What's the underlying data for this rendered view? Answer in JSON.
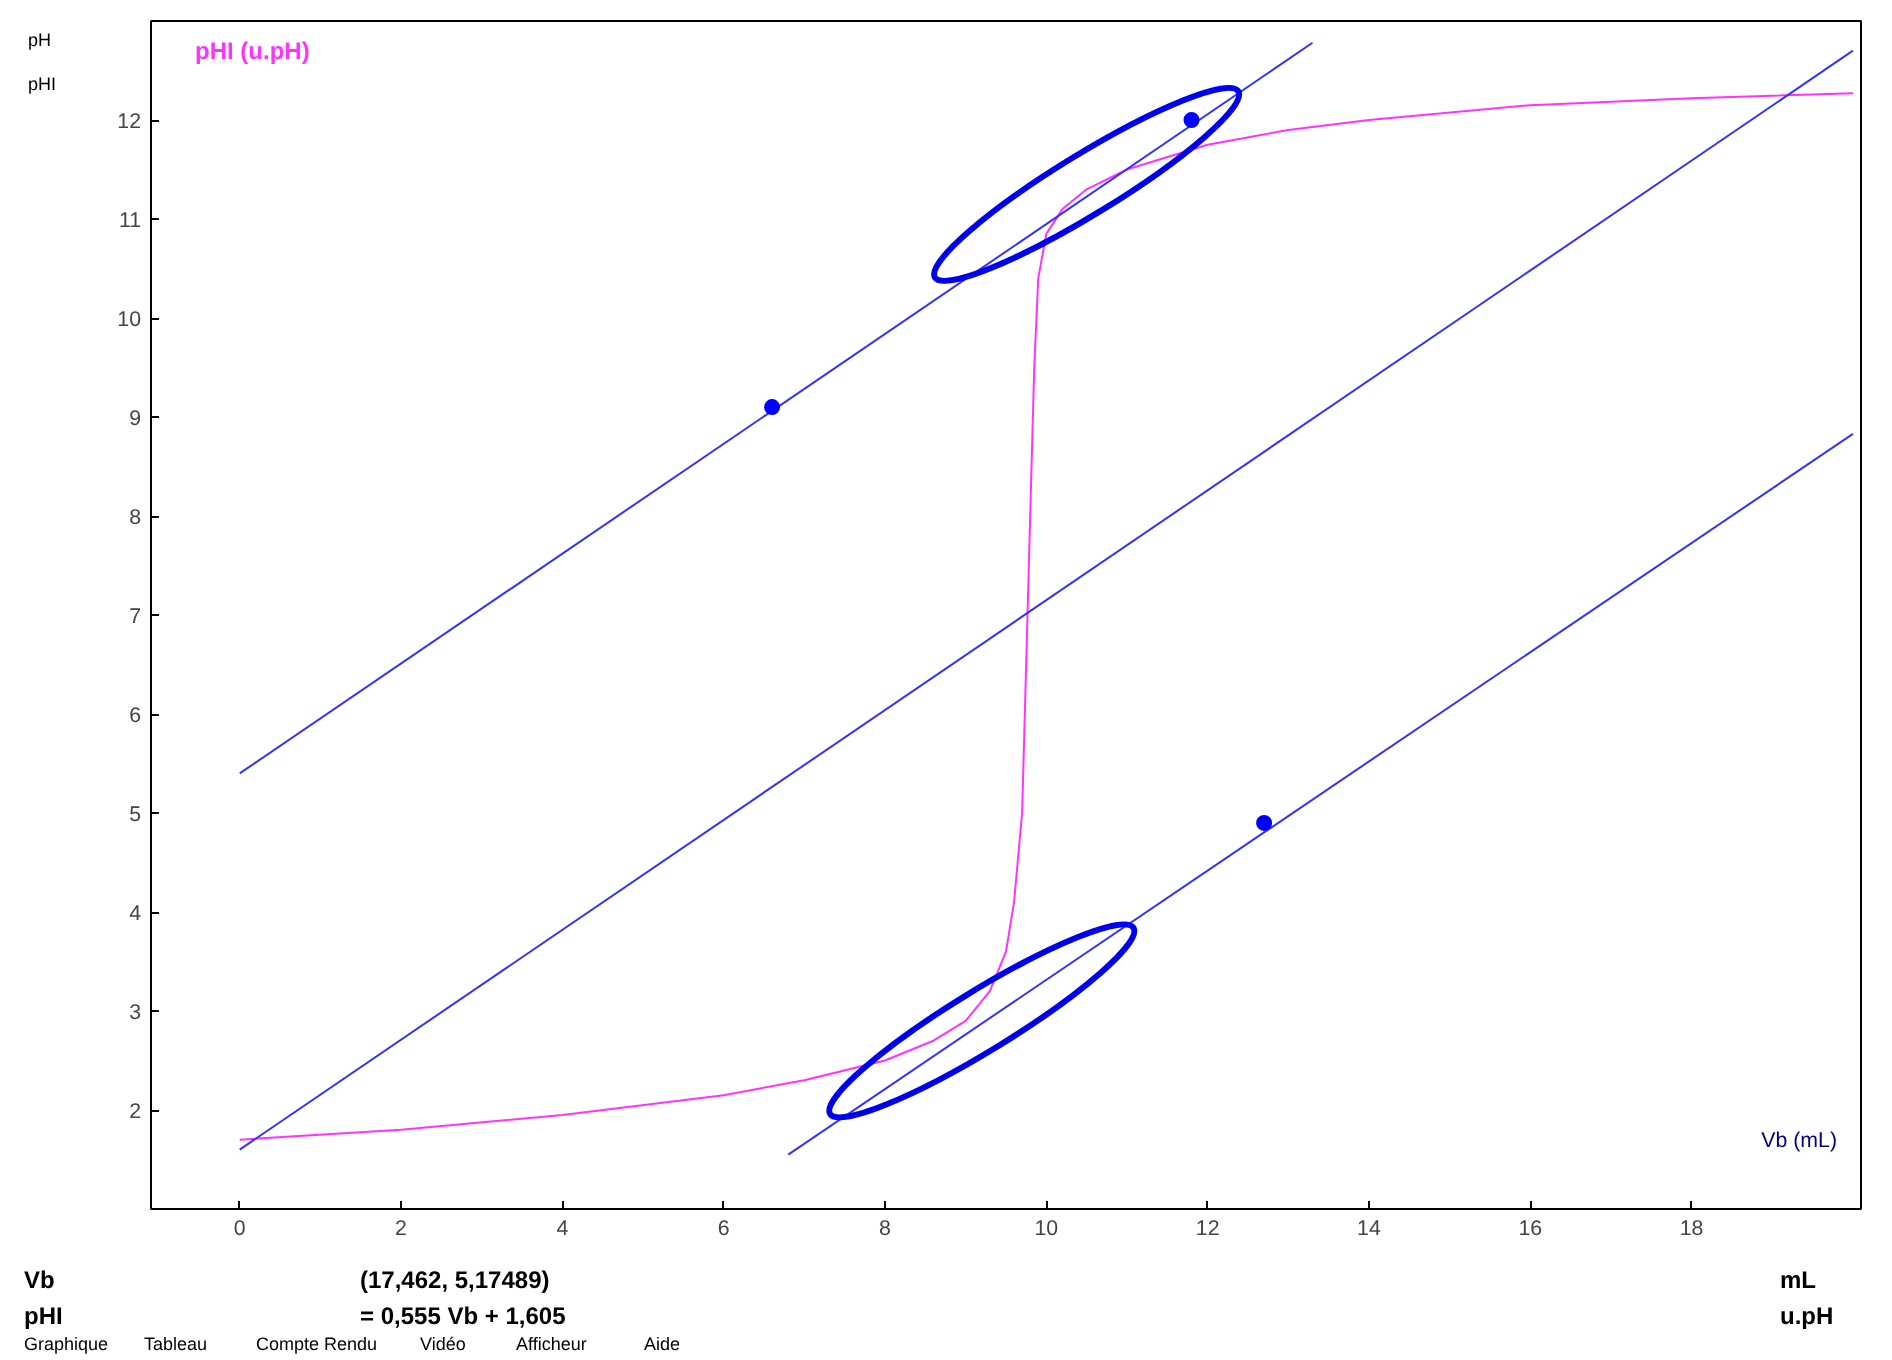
{
  "chart_data": {
    "type": "line",
    "xlabel": "Vb (mL)",
    "ylabel": "pHI (u.pH)",
    "xlim": [
      -1.1,
      20.1
    ],
    "ylim": [
      1,
      13
    ],
    "xticks": [
      0,
      2,
      4,
      6,
      8,
      10,
      12,
      14,
      16,
      18
    ],
    "yticks": [
      2,
      3,
      4,
      5,
      6,
      7,
      8,
      9,
      10,
      11,
      12
    ],
    "grid": false,
    "marker": "none",
    "line_style": "solid",
    "series": [
      {
        "color": "#ff33ff",
        "x": [
          0,
          2,
          4,
          6,
          7,
          8,
          8.6,
          9,
          9.3,
          9.5,
          9.6,
          9.7,
          9.75,
          9.8,
          9.85,
          9.9,
          10,
          10.2,
          10.5,
          11,
          12,
          13,
          14,
          16,
          18,
          20
        ],
        "values": [
          1.7,
          1.8,
          1.95,
          2.15,
          2.3,
          2.5,
          2.7,
          2.9,
          3.2,
          3.6,
          4.1,
          5.0,
          6.5,
          8.0,
          9.5,
          10.4,
          10.85,
          11.1,
          11.3,
          11.5,
          11.75,
          11.9,
          12.0,
          12.15,
          12.22,
          12.27
        ]
      },
      {
        "type": "line",
        "color": "#3333ff",
        "x": [
          0,
          20
        ],
        "values": [
          1.6,
          12.7
        ]
      },
      {
        "type": "line",
        "color": "#3333ff",
        "x": [
          0,
          13.3
        ],
        "values": [
          5.4,
          12.78
        ]
      },
      {
        "type": "line",
        "color": "#3333ff",
        "x": [
          6.8,
          20
        ],
        "values": [
          1.55,
          8.83
        ]
      },
      {
        "type": "scatter",
        "color": "#0000ff",
        "marker": "circle",
        "x": [
          6.6,
          11.8,
          12.7
        ],
        "values": [
          9.1,
          12.0,
          4.9
        ]
      }
    ],
    "annotations": [
      "Vb",
      "(17,462, 5,17489)",
      "mL",
      "pHI",
      "=      0,555 Vb + 1,605",
      "u.pH",
      "pH",
      "pHI",
      "Graphique",
      "Tableau",
      "Compte Rendu",
      "Vidéo",
      "Afficheur",
      "Aide"
    ]
  }
}
